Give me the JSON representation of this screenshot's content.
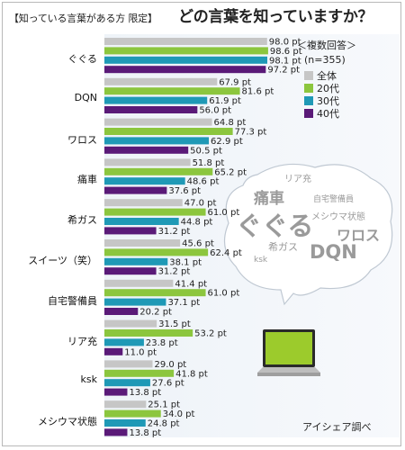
{
  "header": {
    "subtitle": "【知っている言葉がある方 限定】",
    "title": "どの言葉を知っていますか？"
  },
  "legend": {
    "note": "＜複数回答＞",
    "n": "(n=355)"
  },
  "credit": "アイシェア調べ",
  "colors": {
    "全体": "#c6c6c6",
    "20代": "#8cc63e",
    "30代": "#1f99b6",
    "40代": "#5a1a78"
  },
  "cloud_words": [
    "リア充",
    "痛車",
    "自宅警備員",
    "ぐぐる",
    "メシウマ状態",
    "ワロス",
    "希ガス",
    "DQN",
    "ksk"
  ],
  "chart_data": {
    "type": "bar",
    "orientation": "horizontal",
    "unit": "pt",
    "xlim": [
      0,
      100
    ],
    "categories": [
      "ぐぐる",
      "DQN",
      "ワロス",
      "痛車",
      "希ガス",
      "スイーツ（笑）",
      "自宅警備員",
      "リア充",
      "ksk",
      "メシウマ状態"
    ],
    "series": [
      {
        "name": "全体",
        "values": [
          98.0,
          67.9,
          64.8,
          51.8,
          47.0,
          45.6,
          41.4,
          31.5,
          29.0,
          25.1
        ]
      },
      {
        "name": "20代",
        "values": [
          98.6,
          81.6,
          77.3,
          65.2,
          61.0,
          62.4,
          61.0,
          53.2,
          41.8,
          34.0
        ]
      },
      {
        "name": "30代",
        "values": [
          98.1,
          61.9,
          62.9,
          48.6,
          44.8,
          38.1,
          37.1,
          23.8,
          27.6,
          24.8
        ]
      },
      {
        "name": "40代",
        "values": [
          97.2,
          56.0,
          50.5,
          37.6,
          31.2,
          31.2,
          20.2,
          11.0,
          13.8,
          13.8
        ]
      }
    ],
    "value_labels": [
      [
        "98.0 pt",
        "98.6 pt",
        "98.1 pt",
        "97.2 pt"
      ],
      [
        "67.9 pt",
        "81.6 pt",
        "61.9 pt",
        "56.0 pt"
      ],
      [
        "64.8 pt",
        "77.3 pt",
        "62.9 pt",
        "50.5 pt"
      ],
      [
        "51.8 pt",
        "65.2 pt",
        "48.6 pt",
        "37.6 pt"
      ],
      [
        "47.0 pt",
        "61.0 pt",
        "44.8 pt",
        "31.2 pt"
      ],
      [
        "45.6 pt",
        "62.4 pt",
        "38.1 pt",
        "31.2 pt"
      ],
      [
        "41.4 pt",
        "61.0 pt",
        "37.1 pt",
        "20.2 pt"
      ],
      [
        "31.5 pt",
        "53.2 pt",
        "23.8 pt",
        "11.0 pt"
      ],
      [
        "29.0 pt",
        "41.8 pt",
        "27.6 pt",
        "13.8 pt"
      ],
      [
        "25.1 pt",
        "34.0 pt",
        "24.8 pt",
        "13.8 pt"
      ]
    ]
  }
}
